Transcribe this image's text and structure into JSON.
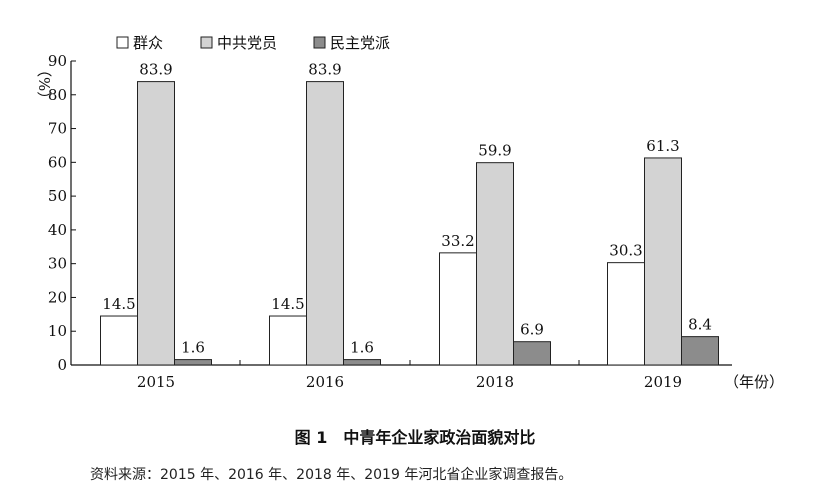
{
  "chart_data": {
    "type": "bar",
    "categories": [
      "2015",
      "2016",
      "2018",
      "2019"
    ],
    "series": [
      {
        "name": "群众",
        "values": [
          14.5,
          14.5,
          33.2,
          30.3
        ],
        "color": "#ffffff"
      },
      {
        "name": "中共党员",
        "values": [
          83.9,
          83.9,
          59.9,
          61.3
        ],
        "color": "#d3d3d3"
      },
      {
        "name": "民主党派",
        "values": [
          1.6,
          1.6,
          6.9,
          8.4
        ],
        "color": "#8c8c8c"
      }
    ],
    "ylabel": "（%）",
    "xlabel": "（年份）",
    "ylim": [
      0,
      90
    ],
    "yticks": [
      0,
      10,
      20,
      30,
      40,
      50,
      60,
      70,
      80,
      90
    ],
    "legend_position": "top",
    "grid": false
  },
  "caption": "图 1　中青年企业家政治面貌对比",
  "source": "资料来源：2015 年、2016 年、2018 年、2019 年河北省企业家调查报告。"
}
